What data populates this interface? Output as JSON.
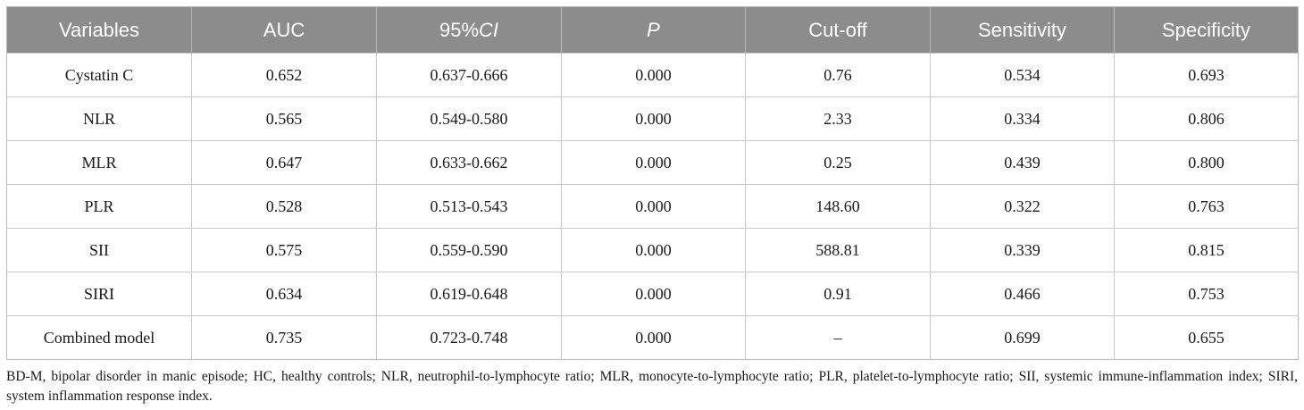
{
  "table": {
    "headers": {
      "variables": "Variables",
      "auc": "AUC",
      "ci_prefix": "95%",
      "ci_italic": "CI",
      "p": "P",
      "cutoff": "Cut-off",
      "sensitivity": "Sensitivity",
      "specificity": "Specificity"
    },
    "rows": [
      {
        "variable": "Cystatin C",
        "auc": "0.652",
        "ci": "0.637-0.666",
        "p": "0.000",
        "cutoff": "0.76",
        "sensitivity": "0.534",
        "specificity": "0.693"
      },
      {
        "variable": "NLR",
        "auc": "0.565",
        "ci": "0.549-0.580",
        "p": "0.000",
        "cutoff": "2.33",
        "sensitivity": "0.334",
        "specificity": "0.806"
      },
      {
        "variable": "MLR",
        "auc": "0.647",
        "ci": "0.633-0.662",
        "p": "0.000",
        "cutoff": "0.25",
        "sensitivity": "0.439",
        "specificity": "0.800"
      },
      {
        "variable": "PLR",
        "auc": "0.528",
        "ci": "0.513-0.543",
        "p": "0.000",
        "cutoff": "148.60",
        "sensitivity": "0.322",
        "specificity": "0.763"
      },
      {
        "variable": "SII",
        "auc": "0.575",
        "ci": "0.559-0.590",
        "p": "0.000",
        "cutoff": "588.81",
        "sensitivity": "0.339",
        "specificity": "0.815"
      },
      {
        "variable": "SIRI",
        "auc": "0.634",
        "ci": "0.619-0.648",
        "p": "0.000",
        "cutoff": "0.91",
        "sensitivity": "0.466",
        "specificity": "0.753"
      },
      {
        "variable": "Combined model",
        "auc": "0.735",
        "ci": "0.723-0.748",
        "p": "0.000",
        "cutoff": "–",
        "sensitivity": "0.699",
        "specificity": "0.655"
      }
    ]
  },
  "footnote": "BD-M, bipolar disorder in manic episode; HC, healthy controls; NLR, neutrophil-to-lymphocyte ratio; MLR, monocyte-to-lymphocyte ratio; PLR, platelet-to-lymphocyte ratio; SII, systemic immune-inflammation index; SIRI, system inflammation response index."
}
